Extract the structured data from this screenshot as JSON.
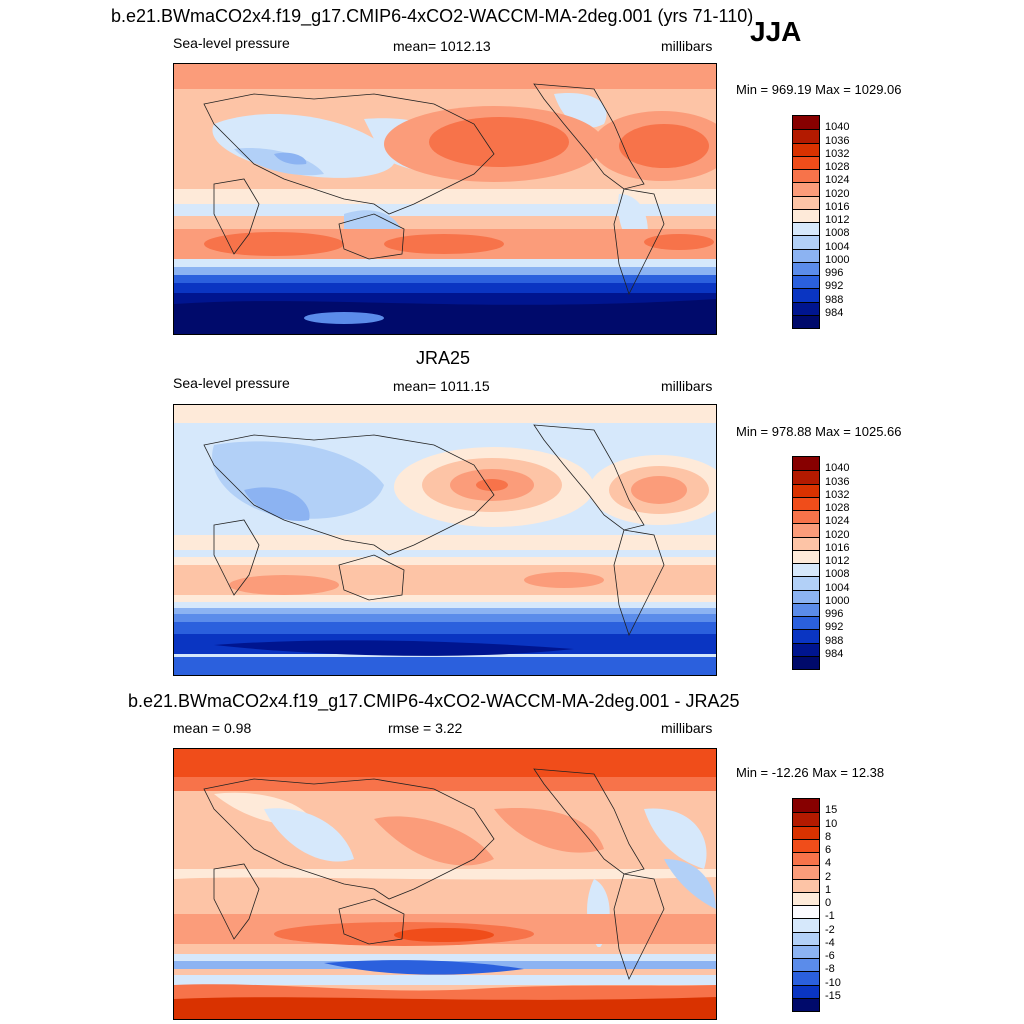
{
  "header": {
    "title": "b.e21.BWmaCO2x4.f19_g17.CMIP6-4xCO2-WACCM-MA-2deg.001 (yrs 71-110)",
    "season": "JJA"
  },
  "panels": [
    {
      "title": "",
      "left_label": "Sea-level pressure",
      "center_label": "mean= 1012.13",
      "units": "millibars",
      "minmax": "Min = 969.19 Max = 1029.06",
      "levels": [
        "1040",
        "1036",
        "1032",
        "1028",
        "1024",
        "1020",
        "1016",
        "1012",
        "1008",
        "1004",
        "1000",
        "996",
        "992",
        "988",
        "984"
      ],
      "colors": [
        "#870000",
        "#b31a00",
        "#d93200",
        "#f04d1a",
        "#f7734a",
        "#fb9c7a",
        "#fdc4a6",
        "#feead9",
        "#d6e8fb",
        "#b2d0f7",
        "#8cb3f2",
        "#5b8cea",
        "#2b60dd",
        "#0a35c2",
        "#00158f",
        "#000a6b"
      ]
    },
    {
      "title": "JRA25",
      "left_label": "Sea-level pressure",
      "center_label": "mean= 1011.15",
      "units": "millibars",
      "minmax": "Min = 978.88 Max = 1025.66",
      "levels": [
        "1040",
        "1036",
        "1032",
        "1028",
        "1024",
        "1020",
        "1016",
        "1012",
        "1008",
        "1004",
        "1000",
        "996",
        "992",
        "988",
        "984"
      ],
      "colors": [
        "#870000",
        "#b31a00",
        "#d93200",
        "#f04d1a",
        "#f7734a",
        "#fb9c7a",
        "#fdc4a6",
        "#feead9",
        "#d6e8fb",
        "#b2d0f7",
        "#8cb3f2",
        "#5b8cea",
        "#2b60dd",
        "#0a35c2",
        "#00158f",
        "#000a6b"
      ]
    },
    {
      "title": "b.e21.BWmaCO2x4.f19_g17.CMIP6-4xCO2-WACCM-MA-2deg.001 - JRA25",
      "left_label": "mean =   0.98",
      "center_label": "rmse =   3.22",
      "units": "millibars",
      "minmax": "Min = -12.26 Max =  12.38",
      "levels": [
        "15",
        "10",
        "8",
        "6",
        "4",
        "2",
        "1",
        "0",
        "-1",
        "-2",
        "-4",
        "-6",
        "-8",
        "-10",
        "-15"
      ],
      "colors": [
        "#870000",
        "#b31a00",
        "#d93200",
        "#f04d1a",
        "#f7734a",
        "#fb9c7a",
        "#fdc4a6",
        "#feead9",
        "#fbfbff",
        "#d6e8fb",
        "#b2d0f7",
        "#8cb3f2",
        "#5b8cea",
        "#2b60dd",
        "#0a35c2",
        "#000a6b"
      ]
    }
  ],
  "chart_data": [
    {
      "type": "heatmap",
      "title": "b.e21.BWmaCO2x4.f19_g17.CMIP6-4xCO2-WACCM-MA-2deg.001 (yrs 71-110)",
      "variable": "Sea-level pressure",
      "season": "JJA",
      "units": "millibars",
      "mean": 1012.13,
      "min": 969.19,
      "max": 1029.06,
      "contour_levels": [
        984,
        988,
        992,
        996,
        1000,
        1004,
        1008,
        1012,
        1016,
        1020,
        1024,
        1028,
        1032,
        1036,
        1040
      ]
    },
    {
      "type": "heatmap",
      "title": "JRA25",
      "variable": "Sea-level pressure",
      "units": "millibars",
      "mean": 1011.15,
      "min": 978.88,
      "max": 1025.66,
      "contour_levels": [
        984,
        988,
        992,
        996,
        1000,
        1004,
        1008,
        1012,
        1016,
        1020,
        1024,
        1028,
        1032,
        1036,
        1040
      ]
    },
    {
      "type": "heatmap",
      "title": "b.e21.BWmaCO2x4.f19_g17.CMIP6-4xCO2-WACCM-MA-2deg.001 - JRA25",
      "units": "millibars",
      "mean": 0.98,
      "rmse": 3.22,
      "min": -12.26,
      "max": 12.38,
      "contour_levels": [
        -15,
        -10,
        -8,
        -6,
        -4,
        -2,
        -1,
        0,
        1,
        2,
        4,
        6,
        8,
        10,
        15
      ]
    }
  ]
}
